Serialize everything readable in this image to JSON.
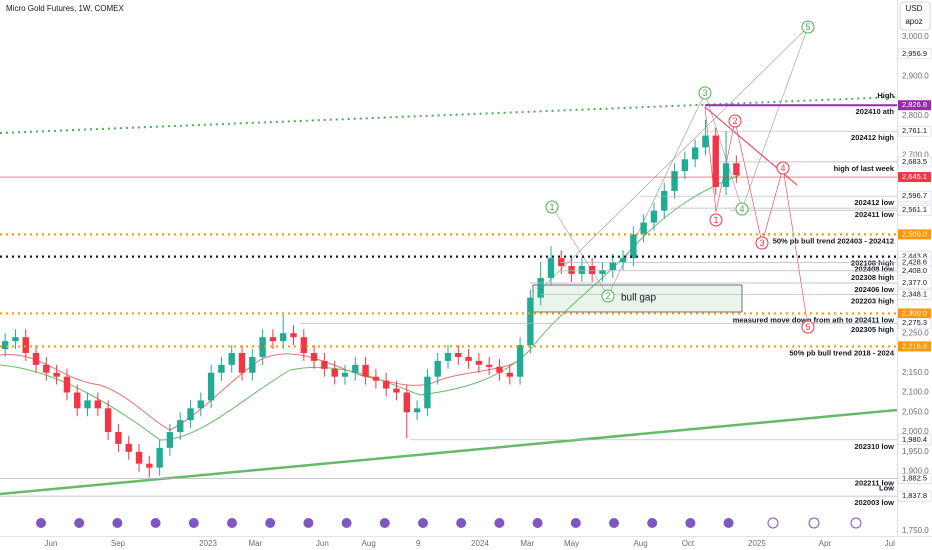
{
  "chart_data": {
    "type": "candlestick",
    "title": "Micro Gold Futures, 1W, COMEX",
    "currency": "USD",
    "user": "apoz",
    "up_color": "#22ab94",
    "down_color": "#f23645",
    "xlim": [
      -0.5,
      86.6
    ],
    "ylim": [
      1737,
      3093
    ],
    "xticks": [
      {
        "value": 4.45,
        "label": "Jun"
      },
      {
        "value": 10.96,
        "label": "Sep"
      },
      {
        "value": 19.7,
        "label": "2023"
      },
      {
        "value": 24.3,
        "label": "Mar"
      },
      {
        "value": 30.8,
        "label": "Jun"
      },
      {
        "value": 35.3,
        "label": "Aug"
      },
      {
        "value": 40.1,
        "label": "9"
      },
      {
        "value": 46.1,
        "label": "2024"
      },
      {
        "value": 50.7,
        "label": "Mar"
      },
      {
        "value": 55.0,
        "label": "May"
      },
      {
        "value": 61.7,
        "label": "Aug"
      },
      {
        "value": 66.3,
        "label": "Oct"
      },
      {
        "value": 73.0,
        "label": "2025"
      },
      {
        "value": 79.6,
        "label": "Apr"
      },
      {
        "value": 85.9,
        "label": "Jul"
      }
    ],
    "yticks": [
      {
        "value": 3000,
        "label": "3,000.0"
      },
      {
        "value": 2900,
        "label": "2,900.0"
      },
      {
        "value": 2800,
        "label": "2,800.0"
      },
      {
        "value": 2700,
        "label": "2,700.0"
      },
      {
        "value": 2250,
        "label": "2,250.0"
      },
      {
        "value": 2150,
        "label": "2,150.0"
      },
      {
        "value": 2100,
        "label": "2,100.0"
      },
      {
        "value": 2050,
        "label": "2,050.0"
      },
      {
        "value": 2000,
        "label": "2,000.0"
      },
      {
        "value": 1950,
        "label": "1,950.0"
      },
      {
        "value": 1900,
        "label": "1,900.0"
      },
      {
        "value": 1750,
        "label": "1,750.0"
      }
    ],
    "open": [
      2210,
      2230,
      2240,
      2200,
      2170,
      2150,
      2140,
      2100,
      2060,
      2080,
      2060,
      2000,
      1970,
      1950,
      1920,
      1910,
      1960,
      2000,
      2030,
      2060,
      2080,
      2150,
      2170,
      2200,
      2150,
      2190,
      2240,
      2230,
      2250,
      2240,
      2200,
      2180,
      2160,
      2140,
      2150,
      2170,
      2140,
      2130,
      2110,
      2100,
      2050,
      2060,
      2140,
      2180,
      2200,
      2190,
      2180,
      2170,
      2165,
      2150,
      2140,
      2220,
      2340,
      2390,
      2440,
      2420,
      2400,
      2420,
      2400,
      2410,
      2430,
      2440,
      2500,
      2530,
      2560,
      2610,
      2660,
      2690,
      2720,
      2750,
      2620,
      2680
    ],
    "high": [
      2250,
      2260,
      2260,
      2220,
      2190,
      2170,
      2160,
      2120,
      2100,
      2100,
      2080,
      2020,
      1990,
      1970,
      1940,
      1980,
      2020,
      2050,
      2080,
      2100,
      2170,
      2190,
      2220,
      2220,
      2210,
      2260,
      2260,
      2300,
      2270,
      2260,
      2220,
      2200,
      2180,
      2170,
      2190,
      2190,
      2160,
      2150,
      2130,
      2120,
      2080,
      2160,
      2200,
      2220,
      2220,
      2210,
      2200,
      2190,
      2185,
      2170,
      2240,
      2360,
      2430,
      2470,
      2460,
      2440,
      2440,
      2440,
      2430,
      2450,
      2460,
      2520,
      2550,
      2580,
      2630,
      2680,
      2710,
      2740,
      2790,
      2770,
      2761,
      2700
    ],
    "low": [
      2190,
      2210,
      2180,
      2150,
      2130,
      2120,
      2080,
      2040,
      2040,
      2040,
      1980,
      1950,
      1930,
      1900,
      1885,
      1890,
      1940,
      1980,
      2010,
      2040,
      2060,
      2130,
      2150,
      2130,
      2130,
      2170,
      2210,
      2210,
      2220,
      2180,
      2160,
      2140,
      2120,
      2120,
      2130,
      2120,
      2110,
      2090,
      2080,
      1985,
      2030,
      2040,
      2120,
      2160,
      2170,
      2160,
      2150,
      2145,
      2130,
      2120,
      2120,
      2200,
      2320,
      2370,
      2400,
      2380,
      2380,
      2380,
      2380,
      2390,
      2410,
      2420,
      2480,
      2510,
      2540,
      2590,
      2640,
      2670,
      2700,
      2600,
      2600,
      2630
    ],
    "close": [
      2230,
      2240,
      2200,
      2170,
      2150,
      2140,
      2100,
      2060,
      2080,
      2060,
      2000,
      1970,
      1950,
      1920,
      1910,
      1960,
      2000,
      2030,
      2060,
      2080,
      2150,
      2170,
      2200,
      2150,
      2190,
      2240,
      2230,
      2250,
      2240,
      2200,
      2180,
      2160,
      2140,
      2150,
      2170,
      2140,
      2130,
      2110,
      2100,
      2050,
      2060,
      2140,
      2180,
      2200,
      2190,
      2180,
      2170,
      2165,
      2150,
      2140,
      2220,
      2340,
      2390,
      2440,
      2420,
      2400,
      2420,
      2400,
      2410,
      2430,
      2440,
      2500,
      2530,
      2560,
      2610,
      2660,
      2690,
      2720,
      2750,
      2620,
      2680,
      2650
    ],
    "levels": [
      {
        "value": 2956.9,
        "label": "2,956.9"
      },
      {
        "value": 2826.8,
        "label": "2,826.8",
        "note": "202410 ath",
        "badge": "High",
        "color": "#9c27b0"
      },
      {
        "value": 2761.1,
        "label": "2,761.1",
        "note": "202412 high"
      },
      {
        "value": 2683.5,
        "label": "2,683.5",
        "note": "high of last week"
      },
      {
        "value": 2645.1,
        "label": "2,645.1",
        "color": "#f23645"
      },
      {
        "value": 2596.7,
        "label": "2,596.7",
        "note": "202412 low"
      },
      {
        "value": 2566.5,
        "label": "2,566.5",
        "note": "202411 low"
      },
      {
        "value": 2561.1,
        "label": "2,561.1"
      },
      {
        "value": 2500.0,
        "label": "2,500.0",
        "note": "50% pb bull trend 202403 - 202412",
        "color": "#ff9800",
        "line": "dotted"
      },
      {
        "value": 2443.8,
        "label": "2,443.8",
        "note": "202108 high",
        "line": "dotted"
      },
      {
        "value": 2428.6,
        "label": "2,428.6",
        "note": "202408 low"
      },
      {
        "value": 2408.0,
        "label": "2,408.0",
        "note": "202308 high"
      },
      {
        "value": 2377.0,
        "label": "2,377.0",
        "note": "202406 low"
      },
      {
        "value": 2348.1,
        "label": "2,348.1",
        "note": "202203 high"
      },
      {
        "value": 2300.0,
        "label": "2,300.0",
        "note": "measured move down from ath to 202411 low",
        "color": "#ff9800",
        "line": "dotted"
      },
      {
        "value": 2275.3,
        "label": "2,275.3",
        "note": "202305 high"
      },
      {
        "value": 2216.6,
        "label": "2,216.6",
        "note": "50% pb bull trend 2018 - 2024",
        "color": "#ff9800",
        "line": "dotted"
      },
      {
        "value": 1980.4,
        "label": "1,980.4",
        "note": "202310 low"
      },
      {
        "value": 1882.5,
        "label": "1,882.5",
        "note": "202211 low",
        "badge": "Low"
      },
      {
        "value": 1837.8,
        "label": "1,837.8",
        "note": "202003 low"
      }
    ],
    "waves": [
      {
        "label": "1",
        "color": "#4caf50"
      },
      {
        "label": "2",
        "color": "#4caf50"
      },
      {
        "label": "3",
        "color": "#4caf50"
      },
      {
        "label": "4",
        "color": "#4caf50"
      },
      {
        "label": "5",
        "color": "#4caf50"
      },
      {
        "label": "1",
        "color": "#f23645"
      },
      {
        "label": "2",
        "color": "#f23645"
      },
      {
        "label": "3",
        "color": "#f23645"
      },
      {
        "label": "4",
        "color": "#f23645"
      },
      {
        "label": "5",
        "color": "#f23645"
      }
    ],
    "annotations": [
      "bull gap"
    ]
  }
}
